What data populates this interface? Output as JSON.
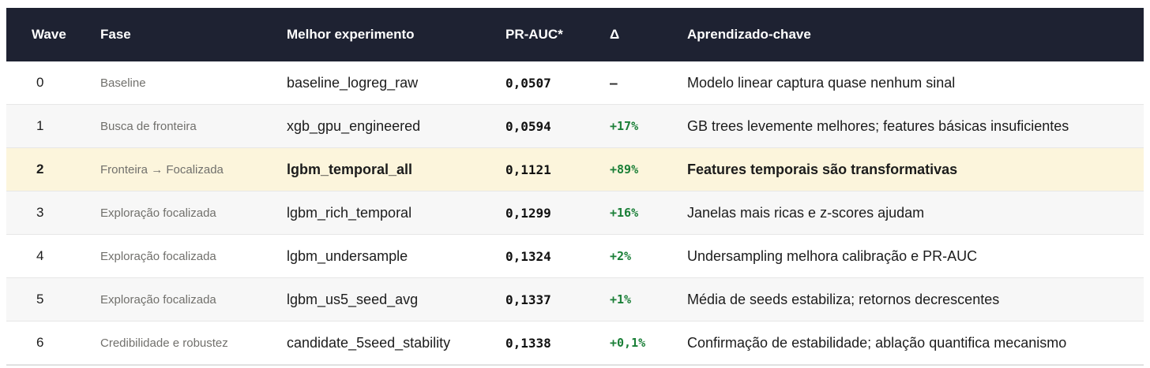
{
  "colors": {
    "header_bg": "#1e2232",
    "header_text": "#ffffff",
    "row_alt_bg": "#f7f7f7",
    "highlight_bg": "#fcf5dc",
    "delta_positive": "#1a7f37",
    "fase_text": "#71706c",
    "border": "#e7e7e7"
  },
  "table": {
    "columns": [
      {
        "key": "wave",
        "label": "Wave"
      },
      {
        "key": "fase",
        "label": "Fase"
      },
      {
        "key": "experimento",
        "label": "Melhor experimento"
      },
      {
        "key": "pr_auc",
        "label": "PR-AUC*"
      },
      {
        "key": "delta",
        "label": "Δ"
      },
      {
        "key": "aprendizado",
        "label": "Aprendizado-chave"
      }
    ],
    "rows": [
      {
        "wave": "0",
        "fase": "Baseline",
        "experimento": "baseline_logreg_raw",
        "pr_auc": "0,0507",
        "delta": "–",
        "delta_neutral": true,
        "highlight": false,
        "aprendizado": "Modelo linear captura quase nenhum sinal"
      },
      {
        "wave": "1",
        "fase": "Busca de fronteira",
        "experimento": "xgb_gpu_engineered",
        "pr_auc": "0,0594",
        "delta": "+17%",
        "delta_neutral": false,
        "highlight": false,
        "aprendizado": "GB trees levemente melhores; features básicas insuficientes"
      },
      {
        "wave": "2",
        "fase": "Fronteira → Focalizada",
        "experimento": "lgbm_temporal_all",
        "pr_auc": "0,1121",
        "delta": "+89%",
        "delta_neutral": false,
        "highlight": true,
        "aprendizado": "Features temporais são transformativas"
      },
      {
        "wave": "3",
        "fase": "Exploração focalizada",
        "experimento": "lgbm_rich_temporal",
        "pr_auc": "0,1299",
        "delta": "+16%",
        "delta_neutral": false,
        "highlight": false,
        "aprendizado": "Janelas mais ricas e z-scores ajudam"
      },
      {
        "wave": "4",
        "fase": "Exploração focalizada",
        "experimento": "lgbm_undersample",
        "pr_auc": "0,1324",
        "delta": "+2%",
        "delta_neutral": false,
        "highlight": false,
        "aprendizado": "Undersampling melhora calibração e PR-AUC"
      },
      {
        "wave": "5",
        "fase": "Exploração focalizada",
        "experimento": "lgbm_us5_seed_avg",
        "pr_auc": "0,1337",
        "delta": "+1%",
        "delta_neutral": false,
        "highlight": false,
        "aprendizado": "Média de seeds estabiliza; retornos decrescentes"
      },
      {
        "wave": "6",
        "fase": "Credibilidade e robustez",
        "experimento": "candidate_5seed_stability",
        "pr_auc": "0,1338",
        "delta": "+0,1%",
        "delta_neutral": false,
        "highlight": false,
        "aprendizado": "Confirmação de estabilidade; ablação quantifica mecanismo"
      }
    ]
  }
}
